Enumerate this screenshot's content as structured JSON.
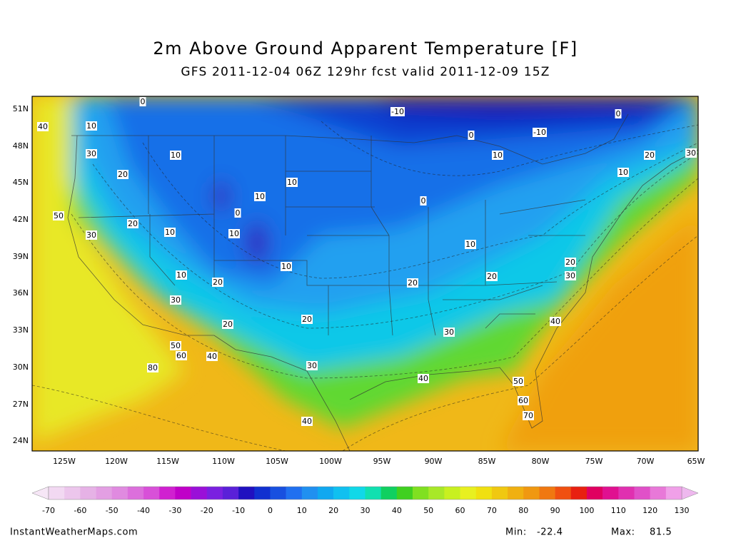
{
  "header": {
    "title": "2m Above Ground Apparent Temperature [F]",
    "subtitle": "GFS 2011-12-04 06Z 129hr fcst valid 2011-12-09 15Z"
  },
  "map": {
    "lat_labels": [
      "51N",
      "48N",
      "45N",
      "42N",
      "39N",
      "36N",
      "33N",
      "30N",
      "27N",
      "24N"
    ],
    "lon_labels": [
      "125W",
      "120W",
      "115W",
      "110W",
      "105W",
      "100W",
      "95W",
      "90W",
      "85W",
      "80W",
      "75W",
      "70W",
      "65W"
    ],
    "contour_labels": [
      "0",
      "-10",
      "0",
      "40",
      "10",
      "0",
      "-10",
      "30",
      "10",
      "10",
      "20",
      "30",
      "20",
      "10",
      "10",
      "10",
      "0",
      "50",
      "0",
      "20",
      "10",
      "10",
      "30",
      "10",
      "20",
      "10",
      "10",
      "20",
      "30",
      "20",
      "20",
      "30",
      "40",
      "20",
      "20",
      "30",
      "50",
      "60",
      "40",
      "80",
      "30",
      "40",
      "50",
      "60",
      "70",
      "40"
    ]
  },
  "colorbar": {
    "labels": [
      -70,
      -60,
      -50,
      -40,
      -30,
      -20,
      -10,
      0,
      10,
      20,
      30,
      40,
      50,
      60,
      70,
      80,
      90,
      100,
      110,
      120,
      130
    ],
    "under_color": "#f6e6f6",
    "over_color": "#eeb8ee",
    "colors": [
      "#f2d9f2",
      "#ecc6ec",
      "#e6b2e6",
      "#e39fe3",
      "#e08ae0",
      "#dc6fdc",
      "#d850d8",
      "#d020d0",
      "#c000c8",
      "#9a10d8",
      "#7a20e0",
      "#5a20d8",
      "#2010c0",
      "#1030d0",
      "#1850e0",
      "#2070f0",
      "#2090f0",
      "#10a8f0",
      "#10c0f0",
      "#10d8e8",
      "#10e0b0",
      "#10d060",
      "#40d020",
      "#80e020",
      "#a8e828",
      "#c8f020",
      "#e8f020",
      "#f0e010",
      "#f0c810",
      "#f0b010",
      "#f09810",
      "#f07810",
      "#f05010",
      "#e82010",
      "#e00060",
      "#e01090",
      "#e030b0",
      "#e050c8",
      "#e878d8",
      "#f0a0e8"
    ]
  },
  "footer": {
    "source": "InstantWeatherMaps.com",
    "min_label": "Min:",
    "min": -22.4,
    "max_label": "Max:",
    "max": 81.5
  }
}
